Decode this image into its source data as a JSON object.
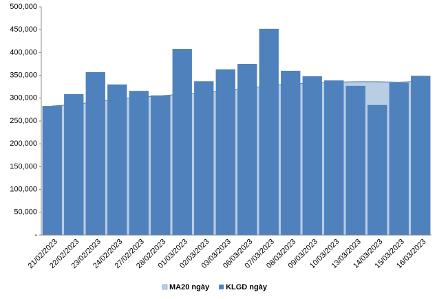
{
  "chart_data": {
    "type": "bar",
    "categories": [
      "21/02/2023",
      "22/02/2023",
      "23/02/2023",
      "24/02/2023",
      "27/02/2023",
      "28/02/2023",
      "01/03/2023",
      "02/03/2023",
      "03/03/2023",
      "06/03/2023",
      "07/03/2023",
      "08/03/2023",
      "09/03/2023",
      "10/03/2023",
      "13/03/2023",
      "14/03/2023",
      "15/03/2023",
      "16/03/2023"
    ],
    "series": [
      {
        "name": "MA20 ngày",
        "type": "area",
        "color": "#b9cde5",
        "values": [
          283000,
          286000,
          292000,
          298000,
          302000,
          305000,
          309000,
          312000,
          316000,
          321000,
          328000,
          331000,
          333000,
          335000,
          336000,
          336000,
          335000,
          337000
        ]
      },
      {
        "name": "KLGD ngày",
        "type": "bar",
        "color": "#4f81bd",
        "values": [
          283000,
          309000,
          357000,
          330000,
          316000,
          306000,
          408000,
          337000,
          363000,
          375000,
          452000,
          360000,
          348000,
          339000,
          327000,
          285000,
          334000,
          349000
        ]
      }
    ],
    "ylim": [
      0,
      500000
    ],
    "yticks": [
      {
        "value": 0,
        "label": "-"
      },
      {
        "value": 50000,
        "label": "50,000"
      },
      {
        "value": 100000,
        "label": "100,000"
      },
      {
        "value": 150000,
        "label": "150,000"
      },
      {
        "value": 200000,
        "label": "200,000"
      },
      {
        "value": 250000,
        "label": "250,000"
      },
      {
        "value": 300000,
        "label": "300,000"
      },
      {
        "value": 350000,
        "label": "350,000"
      },
      {
        "value": 400000,
        "label": "400,000"
      },
      {
        "value": 450000,
        "label": "450,000"
      },
      {
        "value": 500000,
        "label": "500,000"
      }
    ],
    "legend": "bottom"
  }
}
